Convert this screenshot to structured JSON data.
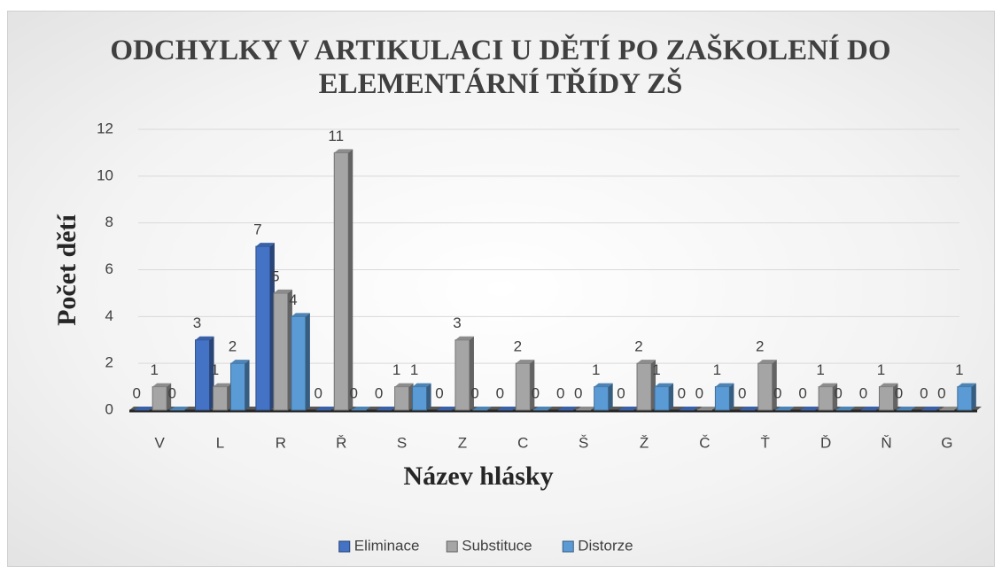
{
  "chart_data": {
    "type": "bar",
    "title": "ODCHYLKY V ARTIKULACI U DĚTÍ PO ZAŠKOLENÍ DO ELEMENTÁRNÍ TŘÍDY ZŠ",
    "x_label": "Název hlásky",
    "y_label": "Počet dětí",
    "categories": [
      "V",
      "L",
      "R",
      "Ř",
      "S",
      "Z",
      "C",
      "Š",
      "Ž",
      "Č",
      "Ť",
      "Ď",
      "Ň",
      "G"
    ],
    "series": [
      {
        "name": "Eliminace",
        "color": "#4472c4",
        "values": [
          0,
          3,
          7,
          0,
          0,
          0,
          0,
          0,
          0,
          0,
          0,
          0,
          0,
          0
        ]
      },
      {
        "name": "Substituce",
        "color": "#a5a5a5",
        "values": [
          1,
          1,
          5,
          11,
          1,
          3,
          2,
          0,
          2,
          0,
          2,
          1,
          1,
          0
        ]
      },
      {
        "name": "Distorze",
        "color": "#5b9bd5",
        "values": [
          0,
          2,
          4,
          0,
          1,
          0,
          0,
          1,
          1,
          1,
          0,
          0,
          0,
          1
        ]
      }
    ],
    "ylim": [
      0,
      12
    ],
    "yticks": [
      0,
      2,
      4,
      6,
      8,
      10,
      12
    ],
    "grid": true,
    "legend": "bottom"
  }
}
